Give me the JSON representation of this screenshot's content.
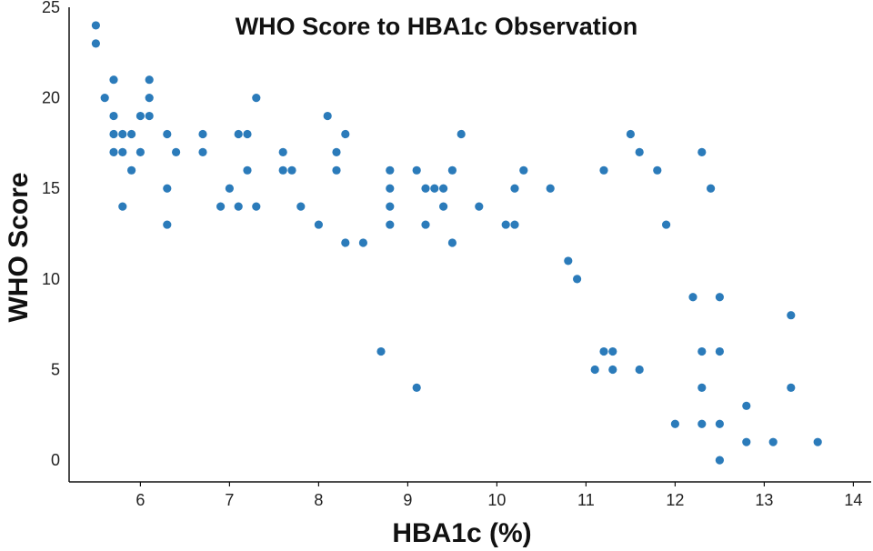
{
  "chart_data": {
    "type": "scatter",
    "title": "WHO Score to HBA1c Observation",
    "xlabel": "HBA1c  (%)",
    "ylabel": "WHO Score",
    "xlim": [
      5.2,
      14.2
    ],
    "ylim": [
      -1.2,
      25
    ],
    "xticks": [
      6,
      7,
      8,
      9,
      10,
      11,
      12,
      13,
      14
    ],
    "yticks": [
      0,
      5,
      10,
      15,
      20,
      25
    ],
    "grid": false,
    "legend": "none",
    "marker_color": "#2b7bba",
    "points": [
      [
        5.5,
        24
      ],
      [
        5.5,
        23
      ],
      [
        5.6,
        20
      ],
      [
        5.7,
        21
      ],
      [
        5.7,
        19
      ],
      [
        5.7,
        18
      ],
      [
        5.7,
        17
      ],
      [
        5.8,
        18
      ],
      [
        5.8,
        17
      ],
      [
        5.8,
        14
      ],
      [
        5.9,
        18
      ],
      [
        5.9,
        16
      ],
      [
        6.0,
        19
      ],
      [
        6.0,
        17
      ],
      [
        6.1,
        21
      ],
      [
        6.1,
        20
      ],
      [
        6.1,
        19
      ],
      [
        6.3,
        18
      ],
      [
        6.3,
        15
      ],
      [
        6.3,
        13
      ],
      [
        6.4,
        17
      ],
      [
        6.7,
        18
      ],
      [
        6.7,
        17
      ],
      [
        6.9,
        14
      ],
      [
        7.0,
        15
      ],
      [
        7.1,
        18
      ],
      [
        7.1,
        14
      ],
      [
        7.2,
        18
      ],
      [
        7.2,
        16
      ],
      [
        7.3,
        20
      ],
      [
        7.3,
        14
      ],
      [
        7.6,
        17
      ],
      [
        7.6,
        16
      ],
      [
        7.7,
        16
      ],
      [
        7.8,
        14
      ],
      [
        8.0,
        13
      ],
      [
        8.1,
        19
      ],
      [
        8.2,
        17
      ],
      [
        8.2,
        16
      ],
      [
        8.3,
        18
      ],
      [
        8.3,
        12
      ],
      [
        8.5,
        12
      ],
      [
        8.7,
        6
      ],
      [
        8.8,
        16
      ],
      [
        8.8,
        15
      ],
      [
        8.8,
        14
      ],
      [
        8.8,
        13
      ],
      [
        9.1,
        16
      ],
      [
        9.1,
        4
      ],
      [
        9.2,
        15
      ],
      [
        9.2,
        13
      ],
      [
        9.3,
        15
      ],
      [
        9.4,
        15
      ],
      [
        9.4,
        14
      ],
      [
        9.5,
        16
      ],
      [
        9.5,
        12
      ],
      [
        9.6,
        18
      ],
      [
        9.8,
        14
      ],
      [
        10.1,
        13
      ],
      [
        10.2,
        15
      ],
      [
        10.2,
        13
      ],
      [
        10.3,
        16
      ],
      [
        10.6,
        15
      ],
      [
        10.8,
        11
      ],
      [
        10.9,
        10
      ],
      [
        11.1,
        5
      ],
      [
        11.2,
        16
      ],
      [
        11.2,
        6
      ],
      [
        11.3,
        6
      ],
      [
        11.3,
        5
      ],
      [
        11.5,
        18
      ],
      [
        11.6,
        17
      ],
      [
        11.6,
        5
      ],
      [
        11.8,
        16
      ],
      [
        11.9,
        13
      ],
      [
        12.0,
        2
      ],
      [
        12.2,
        9
      ],
      [
        12.3,
        17
      ],
      [
        12.3,
        6
      ],
      [
        12.3,
        4
      ],
      [
        12.3,
        2
      ],
      [
        12.4,
        15
      ],
      [
        12.5,
        9
      ],
      [
        12.5,
        6
      ],
      [
        12.5,
        2
      ],
      [
        12.5,
        0
      ],
      [
        12.8,
        3
      ],
      [
        12.8,
        1
      ],
      [
        13.1,
        1
      ],
      [
        13.3,
        8
      ],
      [
        13.3,
        4
      ],
      [
        13.6,
        1
      ]
    ]
  }
}
